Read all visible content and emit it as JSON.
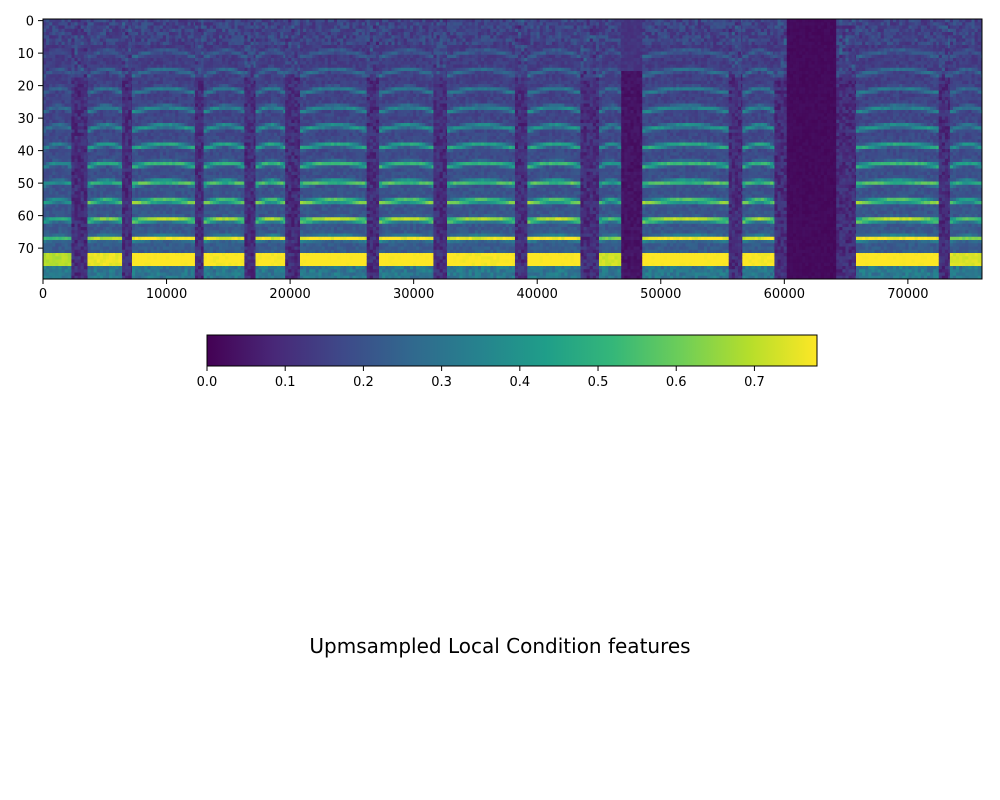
{
  "chart_data": [
    {
      "type": "heatmap",
      "title": "",
      "xlabel": "",
      "ylabel": "",
      "xlim": [
        0,
        76000
      ],
      "ylim": [
        79.5,
        -0.5
      ],
      "rows": 80,
      "x_ticks": [
        0,
        10000,
        20000,
        30000,
        40000,
        50000,
        60000,
        70000
      ],
      "x_tick_labels": [
        "0",
        "10000",
        "20000",
        "30000",
        "40000",
        "50000",
        "60000",
        "70000"
      ],
      "y_ticks": [
        0,
        10,
        20,
        30,
        40,
        50,
        60,
        70
      ],
      "y_tick_labels": [
        "0",
        "10",
        "20",
        "30",
        "40",
        "50",
        "60",
        "70"
      ],
      "colormap": "viridis",
      "value_range": [
        0.0,
        0.78
      ],
      "grid": false,
      "segments": [
        {
          "start": 0,
          "end": 2300,
          "kind": "voiced",
          "strength": 0.55
        },
        {
          "start": 2300,
          "end": 3600,
          "kind": "gap",
          "strength": 0.0
        },
        {
          "start": 3600,
          "end": 6400,
          "kind": "voiced",
          "strength": 0.85
        },
        {
          "start": 6400,
          "end": 7200,
          "kind": "gap",
          "strength": 0.0
        },
        {
          "start": 7200,
          "end": 12300,
          "kind": "voiced",
          "strength": 1.0
        },
        {
          "start": 12300,
          "end": 13000,
          "kind": "gap",
          "strength": 0.0
        },
        {
          "start": 13000,
          "end": 16300,
          "kind": "voiced",
          "strength": 0.95
        },
        {
          "start": 16300,
          "end": 17200,
          "kind": "gap",
          "strength": 0.0
        },
        {
          "start": 17200,
          "end": 19600,
          "kind": "voiced",
          "strength": 0.95
        },
        {
          "start": 19600,
          "end": 20800,
          "kind": "gap",
          "strength": 0.0
        },
        {
          "start": 20800,
          "end": 26200,
          "kind": "voiced",
          "strength": 1.0
        },
        {
          "start": 26200,
          "end": 27200,
          "kind": "gap",
          "strength": 0.0
        },
        {
          "start": 27200,
          "end": 31600,
          "kind": "voiced",
          "strength": 1.0
        },
        {
          "start": 31600,
          "end": 32700,
          "kind": "gap",
          "strength": 0.0
        },
        {
          "start": 32700,
          "end": 38200,
          "kind": "voiced",
          "strength": 0.95
        },
        {
          "start": 38200,
          "end": 39200,
          "kind": "gap",
          "strength": 0.0
        },
        {
          "start": 39200,
          "end": 43500,
          "kind": "voiced",
          "strength": 1.0
        },
        {
          "start": 43500,
          "end": 45000,
          "kind": "gap",
          "strength": 0.0
        },
        {
          "start": 45000,
          "end": 46800,
          "kind": "voiced",
          "strength": 0.7
        },
        {
          "start": 46800,
          "end": 48500,
          "kind": "dark",
          "strength": 0.0
        },
        {
          "start": 48500,
          "end": 55500,
          "kind": "voiced",
          "strength": 1.0
        },
        {
          "start": 55500,
          "end": 56600,
          "kind": "gap",
          "strength": 0.0
        },
        {
          "start": 56600,
          "end": 59200,
          "kind": "voiced",
          "strength": 0.95
        },
        {
          "start": 59200,
          "end": 60200,
          "kind": "gap",
          "strength": 0.0
        },
        {
          "start": 60200,
          "end": 64200,
          "kind": "silence",
          "strength": 0.0
        },
        {
          "start": 64200,
          "end": 65800,
          "kind": "gap",
          "strength": 0.0
        },
        {
          "start": 65800,
          "end": 72500,
          "kind": "voiced",
          "strength": 1.0
        },
        {
          "start": 72500,
          "end": 73400,
          "kind": "gap",
          "strength": 0.0
        },
        {
          "start": 73400,
          "end": 76000,
          "kind": "voiced",
          "strength": 0.75
        }
      ]
    },
    {
      "type": "colorbar",
      "orientation": "horizontal",
      "colormap": "viridis",
      "range": [
        0.0,
        0.78
      ],
      "ticks": [
        0.0,
        0.1,
        0.2,
        0.3,
        0.4,
        0.5,
        0.6,
        0.7
      ],
      "tick_labels": [
        "0.0",
        "0.1",
        "0.2",
        "0.3",
        "0.4",
        "0.5",
        "0.6",
        "0.7"
      ]
    }
  ],
  "caption": "Upmsampled Local Condition features",
  "colors": {
    "viridis": [
      "#440154",
      "#482878",
      "#3e4989",
      "#31688e",
      "#26828e",
      "#1f9e89",
      "#35b779",
      "#6ece58",
      "#b5de2b",
      "#fde725"
    ],
    "axis": "#000000",
    "background": "#ffffff"
  }
}
